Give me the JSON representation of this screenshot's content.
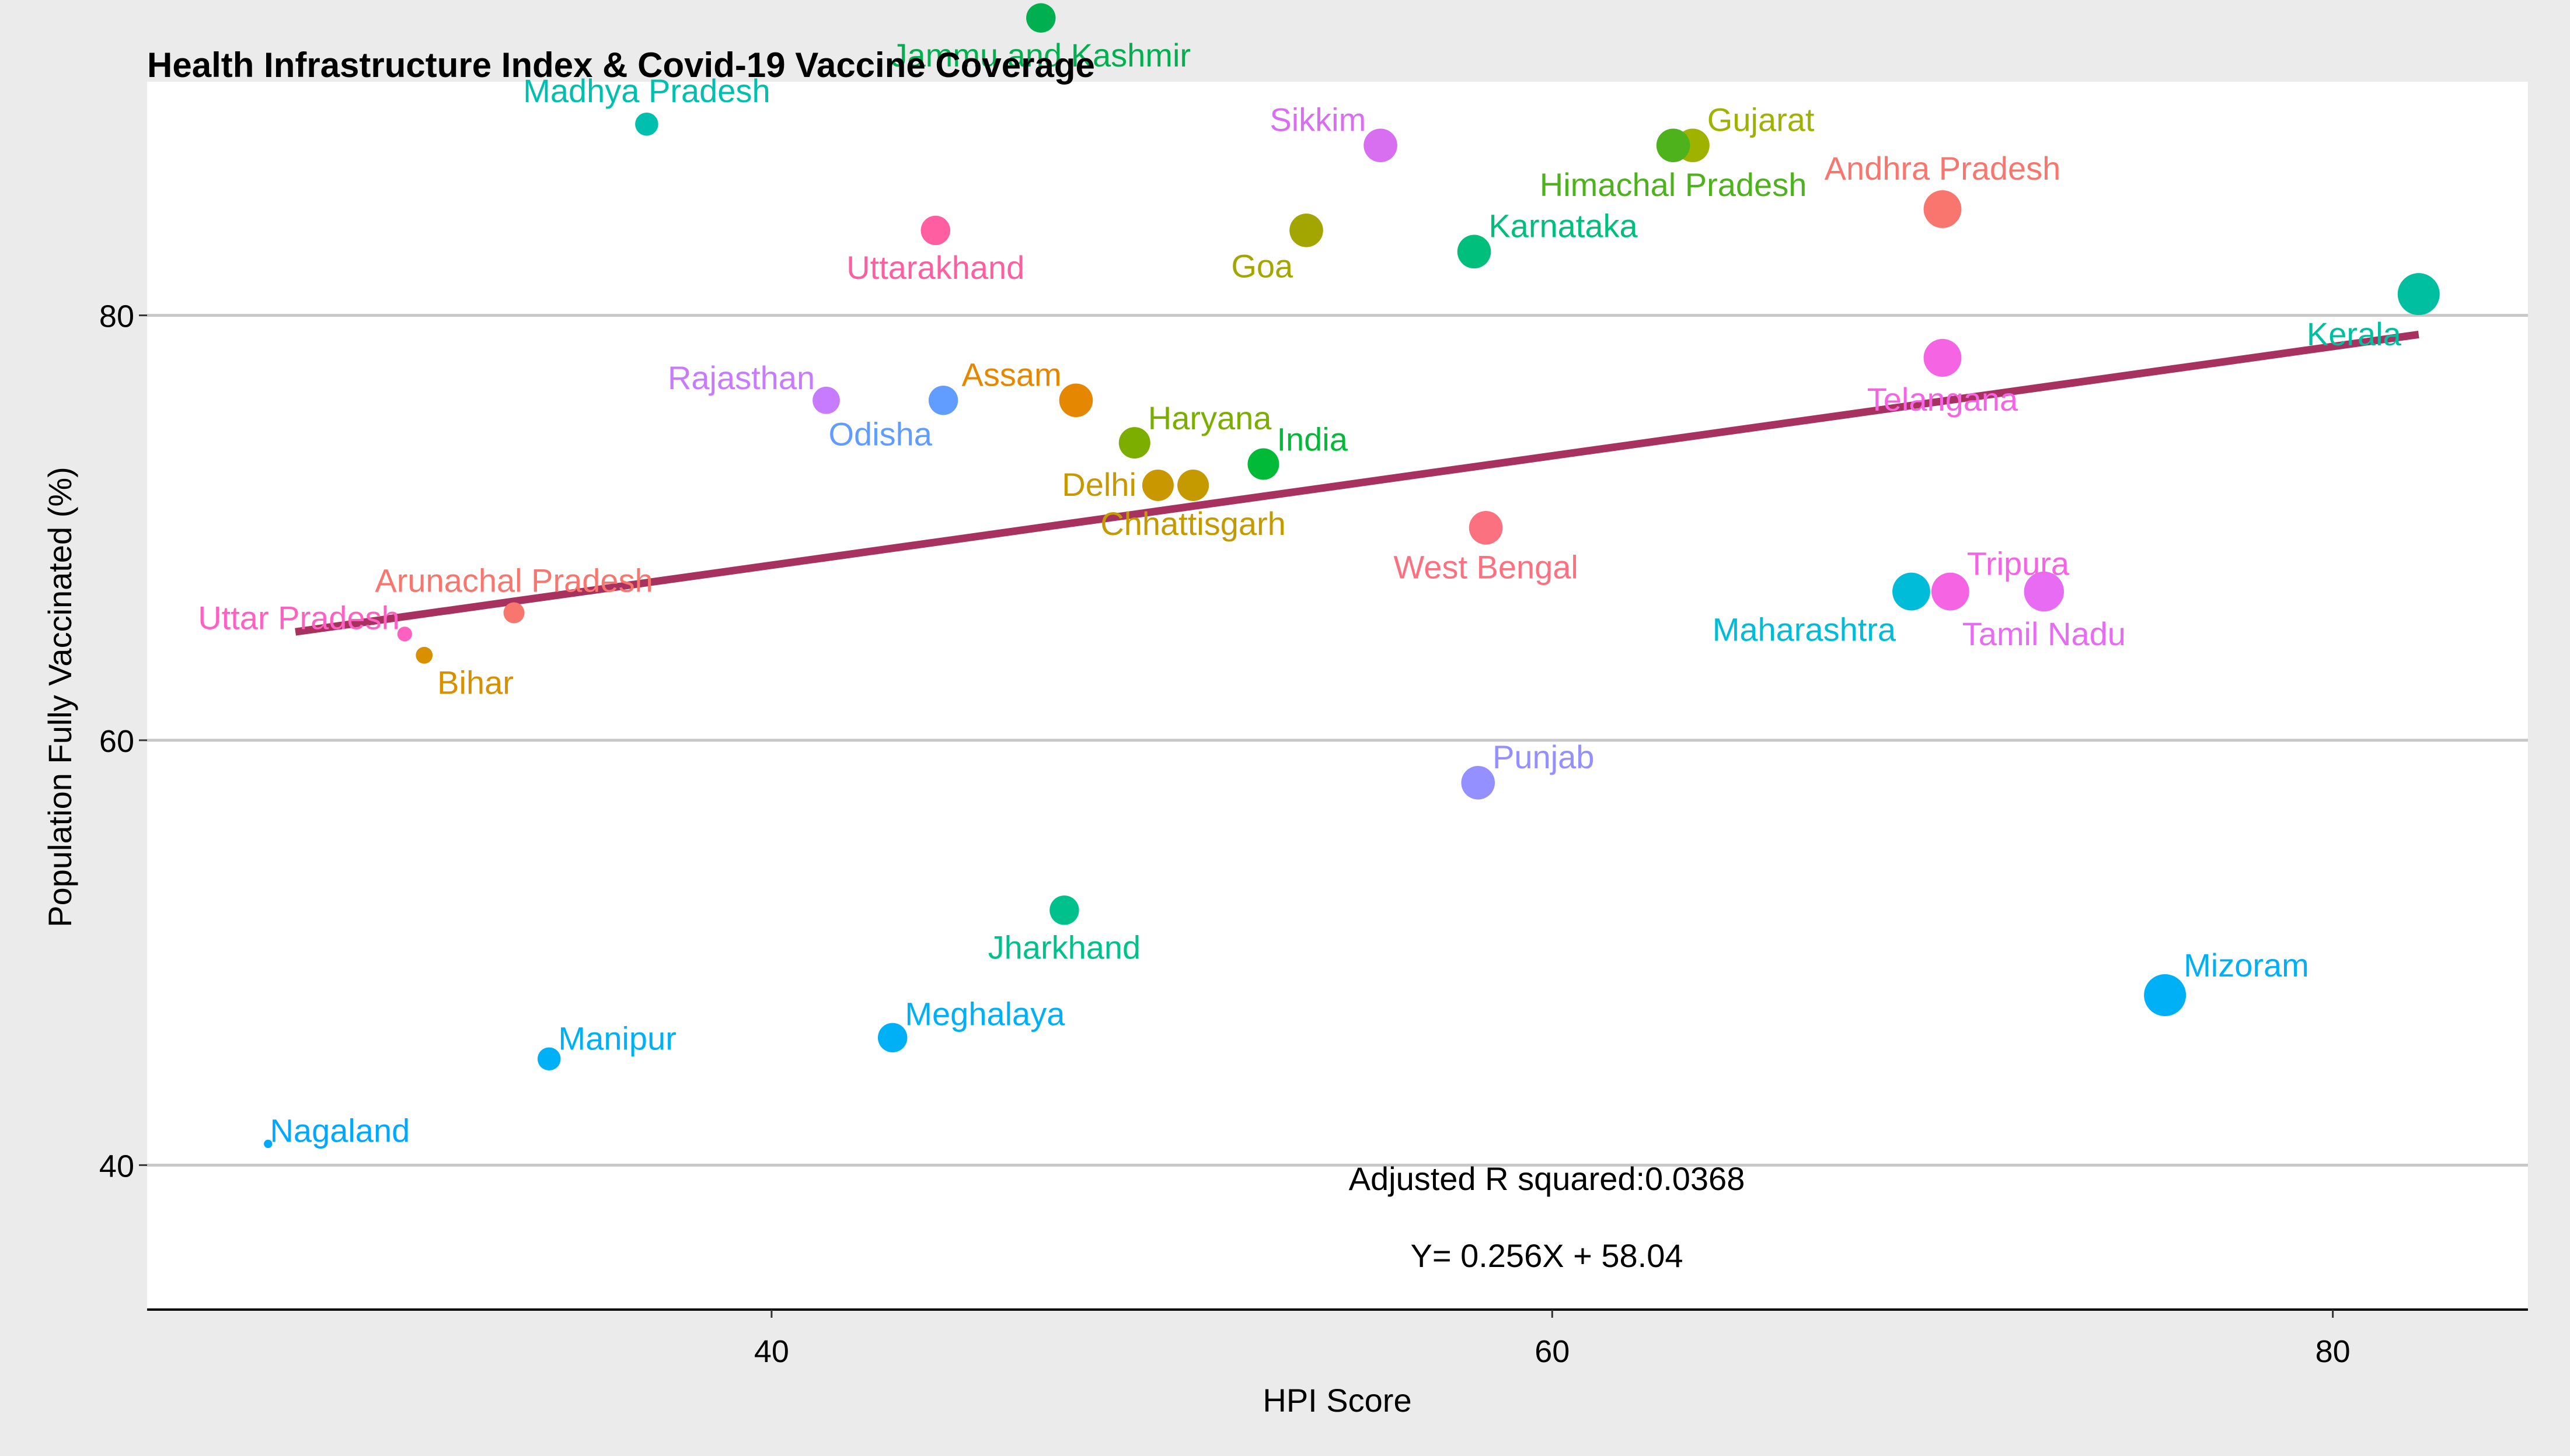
{
  "chart_data": {
    "type": "scatter",
    "title": "Health Infrastructure Index & Covid-19 Vaccine Coverage",
    "xlabel": "HPI Score",
    "ylabel": "Population Fully Vaccinated (%)",
    "xlim": [
      24,
      85
    ],
    "ylim": [
      33.2,
      91
    ],
    "xticks": [
      40,
      60,
      80
    ],
    "yticks": [
      40,
      60,
      80
    ],
    "grid": "horizontal",
    "annotations": [
      "Adjusted R squared:0.0368",
      "Y= 0.256X + 58.04"
    ],
    "regression": {
      "x": [
        27.8,
        82.2
      ],
      "y": [
        65.1,
        79.1
      ],
      "color": "#a8325f"
    },
    "points": [
      {
        "label": "Jammu and Kashmir",
        "x": 46.9,
        "y": 94.0,
        "size": 7,
        "color": "#00b050",
        "label_pos": "below"
      },
      {
        "label": "Madhya Pradesh",
        "x": 36.8,
        "y": 89.0,
        "size": 5.5,
        "color": "#00bfae",
        "label_pos": "above"
      },
      {
        "label": "Sikkim",
        "x": 55.6,
        "y": 88.0,
        "size": 8,
        "color": "#d86ff0",
        "label_pos": "left-above"
      },
      {
        "label": "Gujarat",
        "x": 63.6,
        "y": 88.0,
        "size": 8,
        "color": "#9fb200",
        "label_pos": "right-above"
      },
      {
        "label": "Himachal Pradesh",
        "x": 63.1,
        "y": 88.0,
        "size": 8,
        "color": "#4db21b",
        "label_pos": "below"
      },
      {
        "label": "Andhra Pradesh",
        "x": 70.0,
        "y": 85.0,
        "size": 9,
        "color": "#f8766d",
        "label_pos": "above"
      },
      {
        "label": "Uttarakhand",
        "x": 44.2,
        "y": 84.0,
        "size": 7,
        "color": "#ff5fa0",
        "label_pos": "below"
      },
      {
        "label": "Goa",
        "x": 53.7,
        "y": 84.0,
        "size": 8,
        "color": "#a3a500",
        "label_pos": "left-below"
      },
      {
        "label": "Karnataka",
        "x": 58.0,
        "y": 83.0,
        "size": 8,
        "color": "#00bf7d",
        "label_pos": "right-above"
      },
      {
        "label": "Kerala",
        "x": 82.2,
        "y": 81.0,
        "size": 10,
        "color": "#00bfa0",
        "label_pos": "left-below"
      },
      {
        "label": "Telangana",
        "x": 70.0,
        "y": 78.0,
        "size": 9,
        "color": "#f564e3",
        "label_pos": "below"
      },
      {
        "label": "Rajasthan",
        "x": 41.4,
        "y": 76.0,
        "size": 6.5,
        "color": "#c77cff",
        "label_pos": "left-above"
      },
      {
        "label": "Odisha",
        "x": 44.4,
        "y": 76.0,
        "size": 7,
        "color": "#619cff",
        "label_pos": "left-below"
      },
      {
        "label": "Assam",
        "x": 47.8,
        "y": 76.0,
        "size": 8,
        "color": "#e58700",
        "label_pos": "left-above"
      },
      {
        "label": "Haryana",
        "x": 49.3,
        "y": 74.0,
        "size": 7.5,
        "color": "#7cae00",
        "label_pos": "right-above"
      },
      {
        "label": "India",
        "x": 52.6,
        "y": 73.0,
        "size": 7.5,
        "color": "#00ba38",
        "label_pos": "right-above"
      },
      {
        "label": "Delhi",
        "x": 49.9,
        "y": 72.0,
        "size": 7.5,
        "color": "#c99800",
        "label_pos": "left"
      },
      {
        "label": "Chhattisgarh",
        "x": 50.8,
        "y": 72.0,
        "size": 7.5,
        "color": "#c49a00",
        "label_pos": "below"
      },
      {
        "label": "West Bengal",
        "x": 58.3,
        "y": 70.0,
        "size": 8,
        "color": "#fc717f",
        "label_pos": "below"
      },
      {
        "label": "Maharashtra",
        "x": 69.2,
        "y": 67.0,
        "size": 9,
        "color": "#00bcd8",
        "label_pos": "left-below"
      },
      {
        "label": "Tripura",
        "x": 70.2,
        "y": 67.0,
        "size": 9,
        "color": "#f564e3",
        "label_pos": "right-above"
      },
      {
        "label": "Tamil Nadu",
        "x": 72.6,
        "y": 67.0,
        "size": 9.5,
        "color": "#e76bf3",
        "label_pos": "below"
      },
      {
        "label": "Uttar Pradesh",
        "x": 30.6,
        "y": 65.0,
        "size": 3.5,
        "color": "#ff61c3",
        "label_pos": "left-above"
      },
      {
        "label": "Arunachal Pradesh",
        "x": 33.4,
        "y": 66.0,
        "size": 5,
        "color": "#f8766d",
        "label_pos": "above"
      },
      {
        "label": "Bihar",
        "x": 31.1,
        "y": 64.0,
        "size": 4,
        "color": "#d89000",
        "label_pos": "right-below"
      },
      {
        "label": "Punjab",
        "x": 58.1,
        "y": 58.0,
        "size": 8,
        "color": "#9590ff",
        "label_pos": "right-above"
      },
      {
        "label": "Jharkhand",
        "x": 47.5,
        "y": 52.0,
        "size": 7,
        "color": "#00c08b",
        "label_pos": "below"
      },
      {
        "label": "Mizoram",
        "x": 75.7,
        "y": 48.0,
        "size": 10,
        "color": "#00b0f6",
        "label_pos": "right-above"
      },
      {
        "label": "Manipur",
        "x": 34.3,
        "y": 45.0,
        "size": 5.5,
        "color": "#00b0f6",
        "label_pos": "right-above"
      },
      {
        "label": "Meghalaya",
        "x": 43.1,
        "y": 46.0,
        "size": 7,
        "color": "#00b0f6",
        "label_pos": "right-above"
      },
      {
        "label": "Nagaland",
        "x": 27.1,
        "y": 41.0,
        "size": 2,
        "color": "#00a9ff",
        "label_pos": "right-above"
      }
    ]
  }
}
